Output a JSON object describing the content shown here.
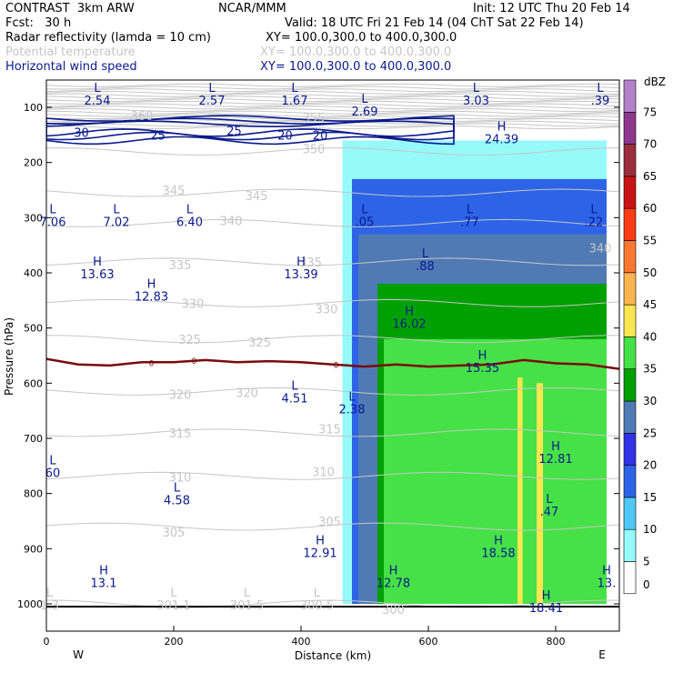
{
  "header": {
    "model": "CONTRAST  3km ARW",
    "center": "NCAR/MMM",
    "init": "Init: 12 UTC Thu 20 Feb 14",
    "fcst": "Fcst:   30 h",
    "valid": "Valid: 18 UTC Fri 21 Feb 14 (04 ChT Sat 22 Feb 14)",
    "fields": [
      {
        "name": "Radar reflectivity (lamda = 10 cm)",
        "xy": "XY= 100.0,300.0 to 400.0,300.0",
        "color": "#000000"
      },
      {
        "name": "Potential temperature",
        "xy": "XY= 100.0,300.0 to 400.0,300.0",
        "color": "#c6c6c6"
      },
      {
        "name": "Horizontal wind speed",
        "xy": "XY= 100.0,300.0 to 400.0,300.0",
        "color": "#0a1a8c"
      }
    ]
  },
  "chart_data": {
    "type": "heatmap",
    "xlabel": "Distance (km)",
    "ylabel": "Pressure (hPa)",
    "xlim": [
      0,
      900
    ],
    "ylim": [
      1050,
      50
    ],
    "x_ticks": [
      0,
      200,
      400,
      600,
      800
    ],
    "y_ticks": [
      100,
      200,
      300,
      400,
      500,
      600,
      700,
      800,
      900,
      1000
    ],
    "x_end_labels": {
      "left": "W",
      "right": "E"
    },
    "colorbar": {
      "unit": "dBZ",
      "levels": [
        0,
        5,
        10,
        15,
        20,
        25,
        30,
        35,
        40,
        45,
        50,
        55,
        60,
        65,
        70,
        75
      ],
      "colors": [
        "#ffffff",
        "#96fafa",
        "#50c8f5",
        "#2d63e6",
        "#3232e6",
        "#507ab4",
        "#00a000",
        "#46e146",
        "#fae650",
        "#fab450",
        "#fa7832",
        "#fa3c14",
        "#c81414",
        "#9b2d3c",
        "#8c378c",
        "#b482c8"
      ]
    },
    "reflectivity_regions": [
      {
        "level": 5,
        "x": [
          465,
          880
        ],
        "p": [
          160,
          1000
        ]
      },
      {
        "level": 15,
        "x": [
          480,
          880
        ],
        "p": [
          230,
          1000
        ]
      },
      {
        "level": 25,
        "x": [
          490,
          880
        ],
        "p": [
          330,
          1000
        ]
      },
      {
        "level": 30,
        "x": [
          520,
          880
        ],
        "p": [
          420,
          1000
        ]
      },
      {
        "level": 35,
        "x": [
          530,
          880
        ],
        "p": [
          520,
          1000
        ]
      },
      {
        "level": 40,
        "x": [
          740,
          748
        ],
        "p": [
          590,
          1000
        ]
      },
      {
        "level": 40,
        "x": [
          770,
          780
        ],
        "p": [
          600,
          1000
        ]
      }
    ],
    "theta_contours": {
      "color": "#c6c6c6",
      "levels": [
        300,
        305,
        310,
        315,
        320,
        325,
        330,
        335,
        340,
        345,
        350
      ],
      "labels": [
        {
          "text": "350",
          "x": 420,
          "p": 175
        },
        {
          "text": "345",
          "x": 200,
          "p": 250
        },
        {
          "text": "345",
          "x": 330,
          "p": 260
        },
        {
          "text": "340",
          "x": 290,
          "p": 305
        },
        {
          "text": "340",
          "x": 870,
          "p": 355
        },
        {
          "text": "335",
          "x": 210,
          "p": 385
        },
        {
          "text": "335",
          "x": 415,
          "p": 380
        },
        {
          "text": "330",
          "x": 230,
          "p": 455
        },
        {
          "text": "330",
          "x": 440,
          "p": 465
        },
        {
          "text": "325",
          "x": 225,
          "p": 520
        },
        {
          "text": "325",
          "x": 335,
          "p": 525
        },
        {
          "text": "320",
          "x": 210,
          "p": 620
        },
        {
          "text": "320",
          "x": 315,
          "p": 617
        },
        {
          "text": "315",
          "x": 210,
          "p": 690
        },
        {
          "text": "315",
          "x": 445,
          "p": 683
        },
        {
          "text": "310",
          "x": 210,
          "p": 770
        },
        {
          "text": "310",
          "x": 435,
          "p": 760
        },
        {
          "text": "305",
          "x": 200,
          "p": 870
        },
        {
          "text": "305",
          "x": 445,
          "p": 850
        },
        {
          "text": "300",
          "x": 545,
          "p": 1010
        },
        {
          "text": "360",
          "x": 150,
          "p": 115
        },
        {
          "text": "355",
          "x": 420,
          "p": 118
        }
      ]
    },
    "theta_extrema": [
      {
        "type": "L",
        "value": "1.3",
        "x": 5,
        "p": 1000
      },
      {
        "type": "L",
        "value": "301.1",
        "x": 200,
        "p": 1000
      },
      {
        "type": "L",
        "value": "301.5",
        "x": 315,
        "p": 1000
      },
      {
        "type": "L",
        "value": "300.5",
        "x": 425,
        "p": 1000
      }
    ],
    "zero_contour": {
      "label": "0",
      "color": "#7a0a0a",
      "x": [
        0,
        50,
        100,
        150,
        200,
        250,
        300,
        350,
        400,
        450,
        500,
        550,
        600,
        650,
        700,
        750,
        800,
        850,
        900
      ],
      "p": [
        556,
        566,
        568,
        562,
        562,
        558,
        562,
        560,
        562,
        566,
        570,
        566,
        570,
        568,
        566,
        558,
        564,
        566,
        574
      ],
      "label_x": [
        165,
        232,
        455
      ]
    },
    "wind_contours": {
      "color": "#0a1a8c",
      "labels": [
        {
          "text": "30",
          "x": 55,
          "p": 145
        },
        {
          "text": "25",
          "x": 175,
          "p": 150
        },
        {
          "text": "25",
          "x": 295,
          "p": 142
        },
        {
          "text": "20",
          "x": 375,
          "p": 150
        },
        {
          "text": "20",
          "x": 430,
          "p": 150
        }
      ]
    },
    "wind_extrema": [
      {
        "type": "L",
        "value": "2.54",
        "x": 80,
        "p": 85
      },
      {
        "type": "L",
        "value": "2.57",
        "x": 260,
        "p": 85
      },
      {
        "type": "L",
        "value": "1.67",
        "x": 390,
        "p": 85
      },
      {
        "type": "L",
        "value": "2.69",
        "x": 500,
        "p": 105
      },
      {
        "type": "L",
        "value": "3.03",
        "x": 675,
        "p": 85
      },
      {
        "type": "L",
        "value": ".39",
        "x": 870,
        "p": 85
      },
      {
        "type": "H",
        "value": "24.39",
        "x": 715,
        "p": 155
      },
      {
        "type": "L",
        "value": ".05",
        "x": 500,
        "p": 305
      },
      {
        "type": "L",
        "value": ".77",
        "x": 665,
        "p": 305
      },
      {
        "type": "L",
        "value": ".22",
        "x": 860,
        "p": 305
      },
      {
        "type": "L",
        "value": "7.06",
        "x": 10,
        "p": 305
      },
      {
        "type": "L",
        "value": "7.02",
        "x": 110,
        "p": 305
      },
      {
        "type": "L",
        "value": "6.40",
        "x": 225,
        "p": 305
      },
      {
        "type": "L",
        "value": ".88",
        "x": 595,
        "p": 385
      },
      {
        "type": "H",
        "value": "13.63",
        "x": 80,
        "p": 400
      },
      {
        "type": "H",
        "value": "12.83",
        "x": 165,
        "p": 440
      },
      {
        "type": "H",
        "value": "13.39",
        "x": 400,
        "p": 400
      },
      {
        "type": "H",
        "value": "16.02",
        "x": 570,
        "p": 490
      },
      {
        "type": "H",
        "value": "15.35",
        "x": 685,
        "p": 570
      },
      {
        "type": "L",
        "value": "4.51",
        "x": 390,
        "p": 625
      },
      {
        "type": "L",
        "value": "2.38",
        "x": 480,
        "p": 645
      },
      {
        "type": "H",
        "value": "12.81",
        "x": 800,
        "p": 735
      },
      {
        "type": "L",
        "value": ".47",
        "x": 790,
        "p": 830
      },
      {
        "type": "L",
        "value": "4.58",
        "x": 205,
        "p": 810
      },
      {
        "type": "L",
        "value": "60",
        "x": 10,
        "p": 760
      },
      {
        "type": "H",
        "value": "12.91",
        "x": 430,
        "p": 905
      },
      {
        "type": "H",
        "value": "18.58",
        "x": 710,
        "p": 905
      },
      {
        "type": "H",
        "value": "12.78",
        "x": 545,
        "p": 960
      },
      {
        "type": "H",
        "value": "13.",
        "x": 880,
        "p": 960
      },
      {
        "type": "H",
        "value": "13.1",
        "x": 90,
        "p": 960
      },
      {
        "type": "H",
        "value": "18.41",
        "x": 785,
        "p": 1005
      }
    ]
  }
}
